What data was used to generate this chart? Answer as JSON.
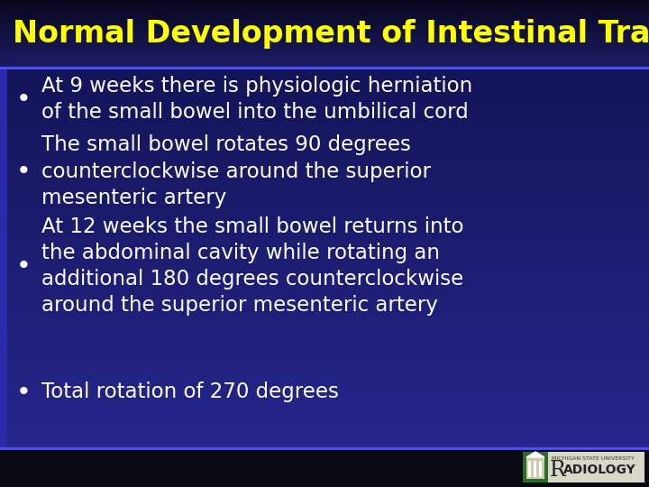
{
  "title": "Normal Development of Intestinal Tract",
  "title_color": "#FFFF00",
  "title_fontsize": 24,
  "title_bg_gradient_top": "#0a0a2a",
  "title_bg_gradient_bot": "#1a1a6a",
  "content_bg_color": "#1e1e8a",
  "content_bg_dark": "#0f0f50",
  "bullet_points": [
    "At 9 weeks there is physiologic herniation\nof the small bowel into the umbilical cord",
    "The small bowel rotates 90 degrees\ncounterclockwise around the superior\nmesenteric artery",
    "At 12 weeks the small bowel returns into\nthe abdominal cavity while rotating an\nadditional 180 degrees counterclockwise\naround the superior mesenteric artery",
    "Total rotation of 270 degrees"
  ],
  "bullet_color": "#FFFFFF",
  "bullet_fontsize": 16.5,
  "separator_color": "#5555ee",
  "footer_bg_color": "#111111",
  "left_strip_color": "#2a2aaa",
  "fig_width": 7.2,
  "fig_height": 5.4,
  "dpi": 100
}
